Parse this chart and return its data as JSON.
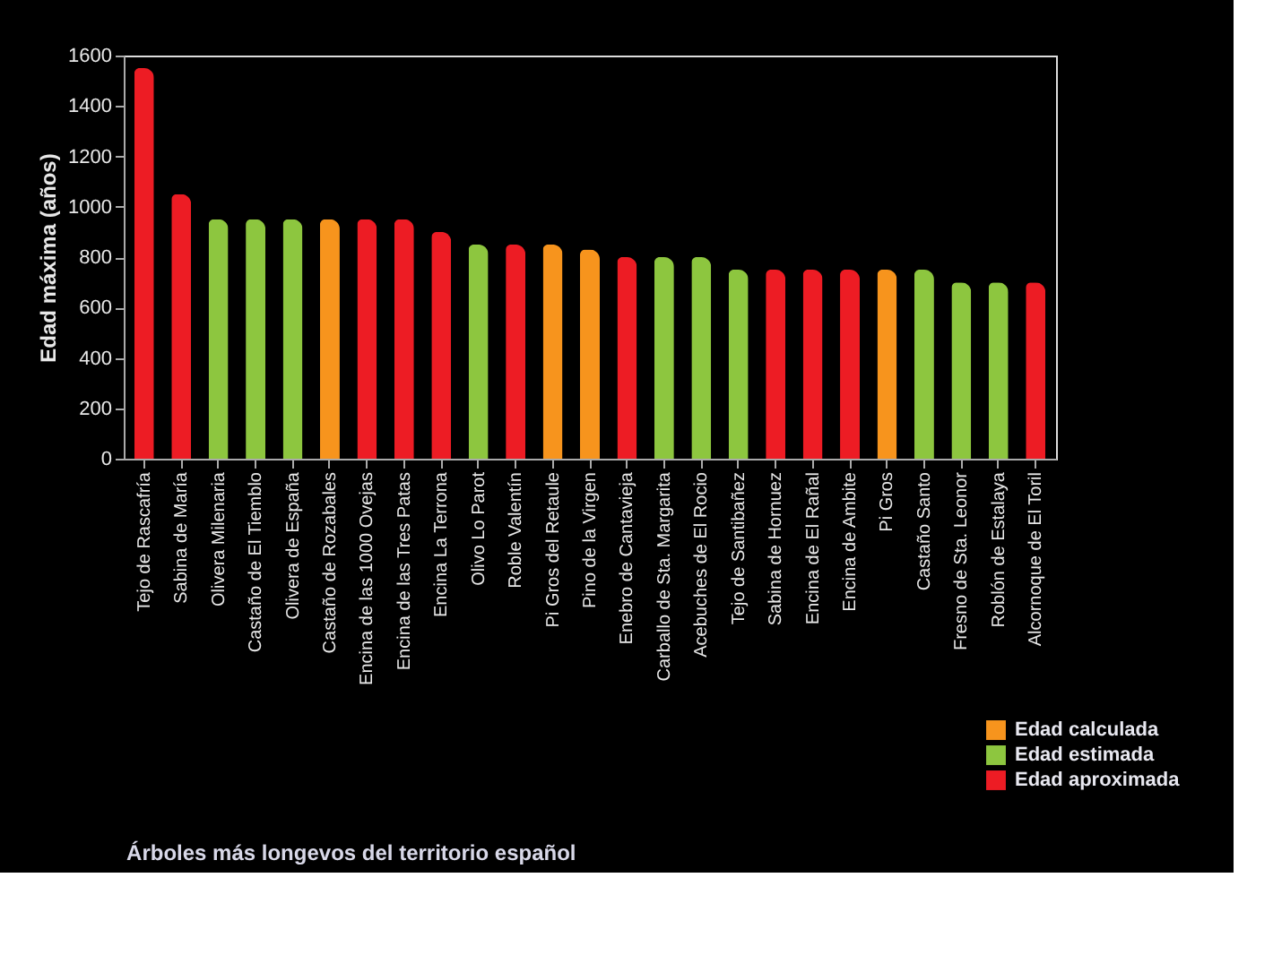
{
  "chart_data": {
    "type": "bar",
    "title": "Árboles más longevos del territorio español",
    "ylabel": "Edad máxima (años)",
    "categories": [
      "Tejo de Rascafría",
      "Sabina de María",
      "Olivera Milenaria",
      "Castaño de El Tiemblo",
      "Olivera de España",
      "Castaño de Rozabales",
      "Encina de las 1000 Ovejas",
      "Encina de las Tres Patas",
      "Encina La Terrona",
      "Olivo Lo Parot",
      "Roble Valentín",
      "Pi Gros del Retaule",
      "Pino de la Virgen",
      "Enebro de Cantavieja",
      "Carballo de  Sta. Margarita",
      "Acebuches de El Rocio",
      "Tejo de Santibañez",
      "Sabina de Hornuez",
      "Encina de El Rañal",
      "Encina de Ambite",
      "Pi Gros",
      "Castaño Santo",
      "Fresno de Sta. Leonor",
      "Roblón de Estalaya",
      "Alcornoque de El Toril"
    ],
    "series": [
      {
        "name": "Edad calculada",
        "color": "#f7941d",
        "values": [
          null,
          null,
          null,
          null,
          null,
          950,
          null,
          null,
          null,
          null,
          null,
          850,
          830,
          null,
          null,
          null,
          null,
          null,
          null,
          null,
          750,
          null,
          null,
          null,
          null
        ]
      },
      {
        "name": "Edad estimada",
        "color": "#8dc63f",
        "values": [
          null,
          null,
          950,
          950,
          950,
          null,
          null,
          null,
          null,
          850,
          null,
          null,
          null,
          null,
          800,
          800,
          750,
          null,
          null,
          null,
          null,
          750,
          700,
          700,
          null
        ]
      },
      {
        "name": "Edad aproximada",
        "color": "#ed1c24",
        "values": [
          1550,
          1050,
          null,
          null,
          null,
          null,
          950,
          950,
          900,
          null,
          850,
          null,
          null,
          800,
          null,
          null,
          null,
          750,
          750,
          750,
          null,
          null,
          null,
          null,
          700
        ]
      }
    ],
    "ylim": [
      0,
      1600
    ],
    "yticks": [
      0,
      200,
      400,
      600,
      800,
      1000,
      1200,
      1400,
      1600
    ],
    "grid": false,
    "legend": "bottom right"
  }
}
